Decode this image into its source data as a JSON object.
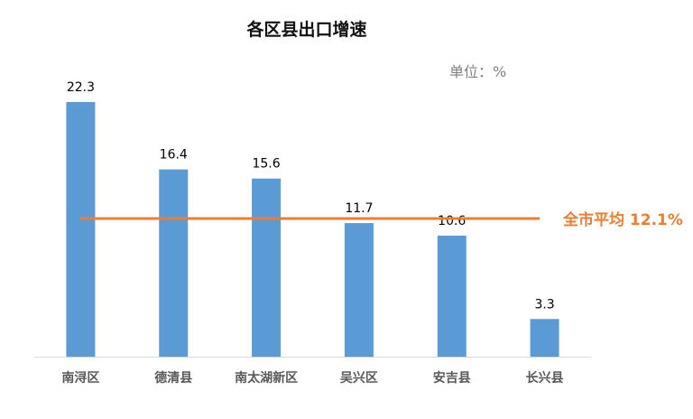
{
  "chart_data": {
    "type": "bar",
    "title": "各区县出口增速",
    "unit_label": "单位：%",
    "categories": [
      "南浔区",
      "德清县",
      "南太湖新区",
      "吴兴区",
      "安吉县",
      "长兴县"
    ],
    "values": [
      22.3,
      16.4,
      15.6,
      11.7,
      10.6,
      3.3
    ],
    "value_labels": [
      "22.3",
      "16.4",
      "15.6",
      "11.7",
      "10.6",
      "3.3"
    ],
    "ylim": [
      0,
      22.3
    ],
    "grid": false,
    "reference_line": {
      "value": 12.1,
      "label": "全市平均 12.1%"
    },
    "colors": {
      "bar": "#5b9bd5",
      "reference_line": "#ed7d31",
      "reference_label": "#ed7d31",
      "value_label": "#000000",
      "category_label": "#595959",
      "axis": "#d9d9d9",
      "title": "#111111",
      "unit": "#7f7f7f"
    }
  }
}
